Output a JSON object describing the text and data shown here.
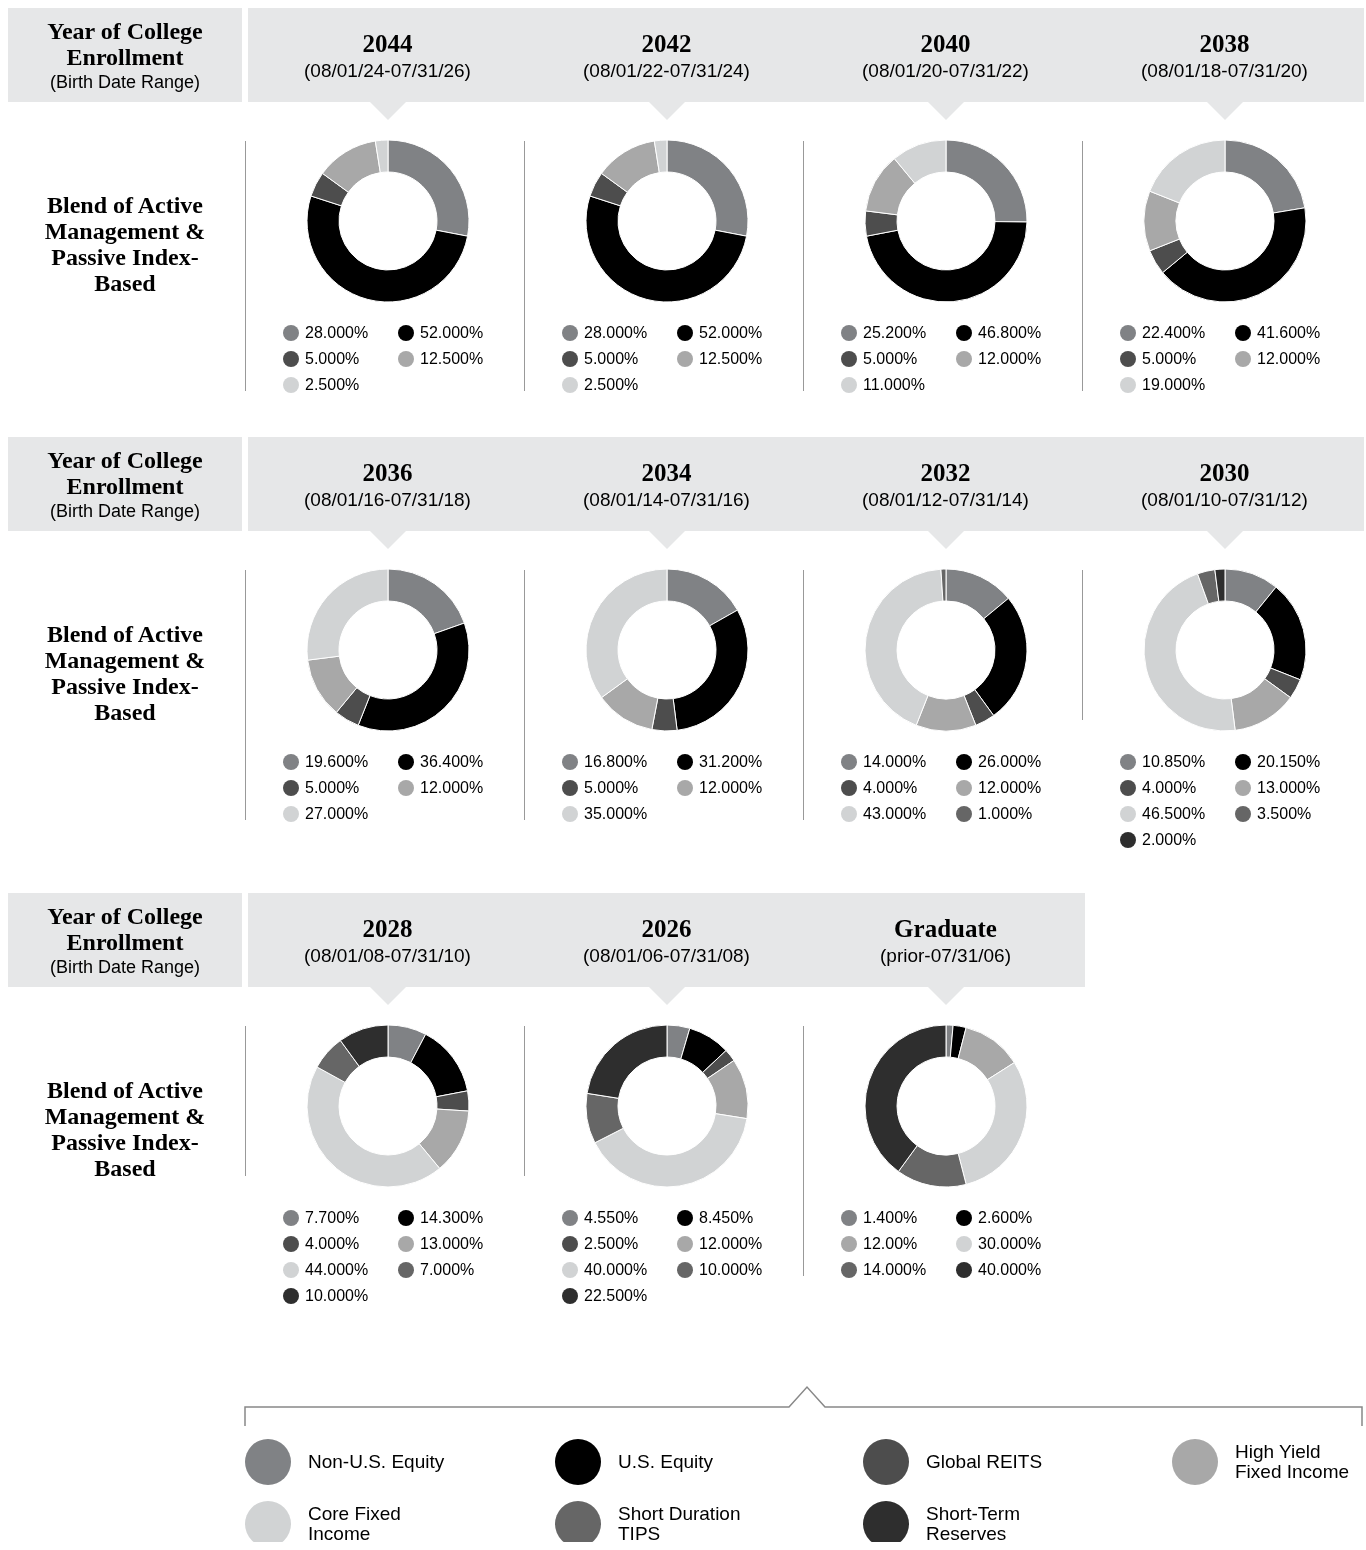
{
  "chart_data": [
    {
      "type": "donut",
      "title": "2044",
      "subtitle": "(08/01/24-07/31/26)",
      "annotations": [
        "Year of College Enrollment",
        "(Birth Date Range)",
        "Blend of Active Management & Passive Index-Based"
      ],
      "categories": [
        "28.000%",
        "52.000%",
        "5.000%",
        "12.500%",
        "2.500%"
      ],
      "values": [
        28,
        52,
        5,
        12.5,
        2.5
      ],
      "colors": [
        "#808285",
        "#000000",
        "#4d4d4d",
        "#a8a8a8",
        "#d1d3d4"
      ],
      "legend": "bottom"
    },
    {
      "type": "donut",
      "title": "2042",
      "subtitle": "(08/01/22-07/31/24)",
      "categories": [
        "28.000%",
        "52.000%",
        "5.000%",
        "12.500%",
        "2.500%"
      ],
      "values": [
        28,
        52,
        5,
        12.5,
        2.5
      ],
      "colors": [
        "#808285",
        "#000000",
        "#4d4d4d",
        "#a8a8a8",
        "#d1d3d4"
      ],
      "legend": "bottom"
    },
    {
      "type": "donut",
      "title": "2040",
      "subtitle": "(08/01/20-07/31/22)",
      "categories": [
        "25.200%",
        "46.800%",
        "5.000%",
        "12.000%",
        "11.000%"
      ],
      "values": [
        25.2,
        46.8,
        5,
        12,
        11
      ],
      "colors": [
        "#808285",
        "#000000",
        "#4d4d4d",
        "#a8a8a8",
        "#d1d3d4"
      ],
      "legend": "bottom"
    },
    {
      "type": "donut",
      "title": "2038",
      "subtitle": "(08/01/18-07/31/20)",
      "categories": [
        "22.400%",
        "41.600%",
        "5.000%",
        "12.000%",
        "19.000%"
      ],
      "values": [
        22.4,
        41.6,
        5,
        12,
        19
      ],
      "colors": [
        "#808285",
        "#000000",
        "#4d4d4d",
        "#a8a8a8",
        "#d1d3d4"
      ],
      "legend": "bottom"
    },
    {
      "type": "donut",
      "title": "2036",
      "subtitle": "(08/01/16-07/31/18)",
      "annotations": [
        "Year of College Enrollment",
        "(Birth Date Range)",
        "Blend of Active Management & Passive Index-Based"
      ],
      "categories": [
        "19.600%",
        "36.400%",
        "5.000%",
        "12.000%",
        "27.000%"
      ],
      "values": [
        19.6,
        36.4,
        5,
        12,
        27
      ],
      "colors": [
        "#808285",
        "#000000",
        "#4d4d4d",
        "#a8a8a8",
        "#d1d3d4"
      ],
      "legend": "bottom"
    },
    {
      "type": "donut",
      "title": "2034",
      "subtitle": "(08/01/14-07/31/16)",
      "categories": [
        "16.800%",
        "31.200%",
        "5.000%",
        "12.000%",
        "35.000%"
      ],
      "values": [
        16.8,
        31.2,
        5,
        12,
        35
      ],
      "colors": [
        "#808285",
        "#000000",
        "#4d4d4d",
        "#a8a8a8",
        "#d1d3d4"
      ],
      "legend": "bottom"
    },
    {
      "type": "donut",
      "title": "2032",
      "subtitle": "(08/01/12-07/31/14)",
      "categories": [
        "14.000%",
        "26.000%",
        "4.000%",
        "12.000%",
        "43.000%",
        "1.000%"
      ],
      "values": [
        14,
        26,
        4,
        12,
        43,
        1
      ],
      "colors": [
        "#808285",
        "#000000",
        "#4d4d4d",
        "#a8a8a8",
        "#d1d3d4",
        "#666666"
      ],
      "legend": "bottom"
    },
    {
      "type": "donut",
      "title": "2030",
      "subtitle": "(08/01/10-07/31/12)",
      "categories": [
        "10.850%",
        "20.150%",
        "4.000%",
        "13.000%",
        "46.500%",
        "3.500%",
        "2.000%"
      ],
      "values": [
        10.85,
        20.15,
        4,
        13,
        46.5,
        3.5,
        2
      ],
      "colors": [
        "#808285",
        "#000000",
        "#4d4d4d",
        "#a8a8a8",
        "#d1d3d4",
        "#666666",
        "#2e2e2e"
      ],
      "legend": "bottom"
    },
    {
      "type": "donut",
      "title": "2028",
      "subtitle": "(08/01/08-07/31/10)",
      "annotations": [
        "Year of College Enrollment",
        "(Birth Date Range)",
        "Blend of Active Management & Passive Index-Based"
      ],
      "categories": [
        "7.700%",
        "14.300%",
        "4.000%",
        "13.000%",
        "44.000%",
        "7.000%",
        "10.000%"
      ],
      "values": [
        7.7,
        14.3,
        4,
        13,
        44,
        7,
        10
      ],
      "colors": [
        "#808285",
        "#000000",
        "#4d4d4d",
        "#a8a8a8",
        "#d1d3d4",
        "#666666",
        "#2e2e2e"
      ],
      "legend": "bottom"
    },
    {
      "type": "donut",
      "title": "2026",
      "subtitle": "(08/01/06-07/31/08)",
      "categories": [
        "4.550%",
        "8.450%",
        "2.500%",
        "12.000%",
        "40.000%",
        "10.000%",
        "22.500%"
      ],
      "values": [
        4.55,
        8.45,
        2.5,
        12,
        40,
        10,
        22.5
      ],
      "colors": [
        "#808285",
        "#000000",
        "#4d4d4d",
        "#a8a8a8",
        "#d1d3d4",
        "#666666",
        "#2e2e2e"
      ],
      "legend": "bottom"
    },
    {
      "type": "donut",
      "title": "Graduate",
      "subtitle": "(prior-07/31/06)",
      "categories": [
        "1.400%",
        "2.600%",
        "12.00%",
        "30.000%",
        "14.000%",
        "40.000%"
      ],
      "values": [
        1.4,
        2.6,
        12,
        30,
        14,
        40
      ],
      "colors": [
        "#808285",
        "#000000",
        "#a8a8a8",
        "#d1d3d4",
        "#666666",
        "#2e2e2e"
      ],
      "legend": "bottom"
    },
    {
      "type": "other",
      "categories": [
        "Non-U.S. Equity",
        "U.S. Equity",
        "Global REITS",
        "High Yield Fixed Income",
        "Core Fixed Income",
        "Short Duration TIPS",
        "Short-Term Reserves"
      ],
      "colors": [
        "#808285",
        "#000000",
        "#4d4d4d",
        "#a8a8a8",
        "#d1d3d4",
        "#666666",
        "#2e2e2e"
      ]
    }
  ]
}
